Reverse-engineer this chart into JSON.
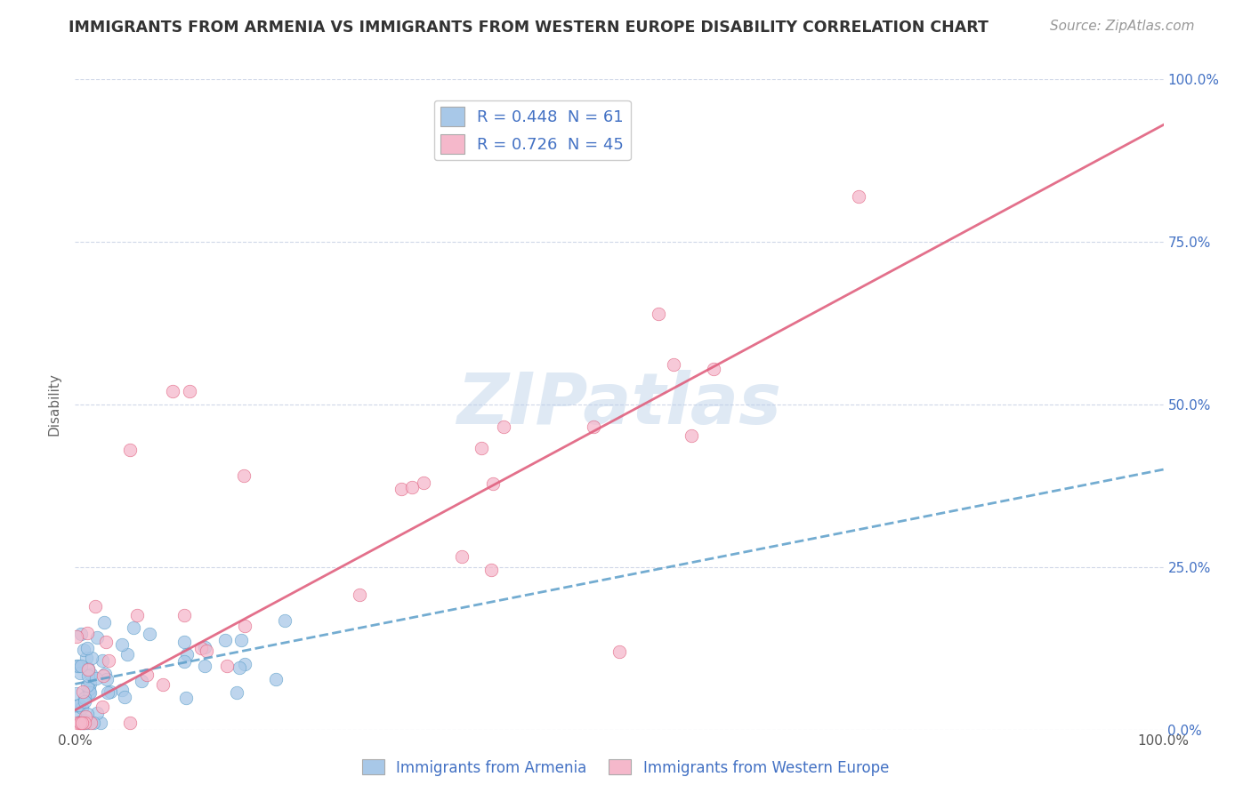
{
  "title": "IMMIGRANTS FROM ARMENIA VS IMMIGRANTS FROM WESTERN EUROPE DISABILITY CORRELATION CHART",
  "source": "Source: ZipAtlas.com",
  "ylabel": "Disability",
  "xlim": [
    0,
    1.0
  ],
  "ylim": [
    0,
    1.0
  ],
  "ytick_labels_right": [
    "0.0%",
    "25.0%",
    "50.0%",
    "75.0%",
    "100.0%"
  ],
  "blue_color": "#a8c8e8",
  "blue_edge_color": "#5b9ec9",
  "pink_color": "#f5b8cb",
  "pink_edge_color": "#e0607e",
  "blue_line_color": "#5b9ec9",
  "pink_line_color": "#e0607e",
  "R_blue": 0.448,
  "N_blue": 61,
  "R_pink": 0.726,
  "N_pink": 45,
  "legend_label_blue": "Immigrants from Armenia",
  "legend_label_pink": "Immigrants from Western Europe",
  "watermark": "ZIPatlas",
  "blue_line_intercept": 0.07,
  "blue_line_slope": 0.33,
  "pink_line_intercept": 0.03,
  "pink_line_slope": 0.9,
  "background_color": "#ffffff",
  "grid_color": "#d0d8e8",
  "title_color": "#333333",
  "axis_label_color": "#666666",
  "tick_color_right": "#4472c4",
  "title_fontsize": 12.5,
  "source_fontsize": 11,
  "legend_fontsize": 13,
  "watermark_fontsize": 58,
  "ylabel_fontsize": 11
}
